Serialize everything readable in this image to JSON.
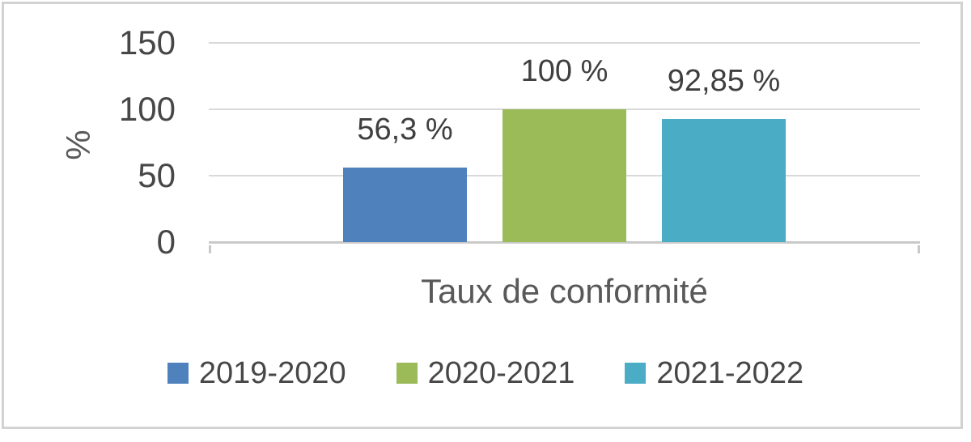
{
  "chart_data": {
    "type": "bar",
    "xlabel": "Taux de conformité",
    "ylabel": "%",
    "ylim": [
      0,
      150
    ],
    "yticks": [
      0,
      50,
      100,
      150
    ],
    "grid": "horizontal",
    "legend_position": "bottom",
    "categories": [
      "Taux de conformité"
    ],
    "series": [
      {
        "name": "2019-2020",
        "value": 56.3,
        "data_label": "56,3 %",
        "color": "#4F81BD"
      },
      {
        "name": "2020-2021",
        "value": 100,
        "data_label": "100 %",
        "color": "#9BBB59"
      },
      {
        "name": "2021-2022",
        "value": 92.85,
        "data_label": "92,85 %",
        "color": "#4BACC6"
      }
    ],
    "colors": {
      "gridline": "#d9d9d9",
      "axis_line": "#c9c9c9",
      "tick_text": "#474747",
      "axis_title_text": "#595959",
      "data_label_text": "#3f3f3f",
      "frame_border": "#d2d2d2"
    }
  }
}
